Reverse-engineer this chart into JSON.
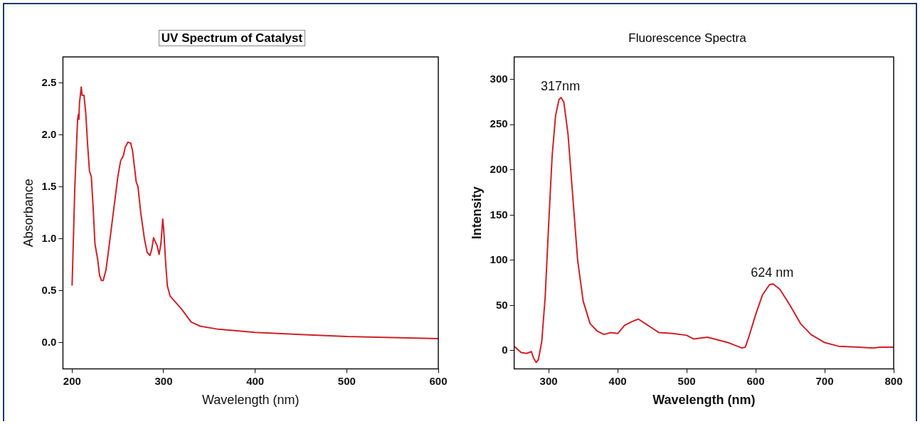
{
  "chart_data": [
    {
      "type": "line",
      "title": "UV Spectrum of Catalyst",
      "xlabel": "Wavelength (nm)",
      "ylabel": "Absorbance",
      "xlim": [
        190,
        600
      ],
      "xticks": [
        200,
        300,
        400,
        500,
        600
      ],
      "ylim": [
        -0.25,
        2.75
      ],
      "yticks": [
        {
          "value": 0,
          "label": "0.0"
        },
        0.5,
        {
          "value": 1,
          "label": "1.0"
        },
        1.5,
        {
          "value": 2,
          "label": "2.0"
        },
        2.5
      ],
      "grid": false,
      "legend": false,
      "marker": "none",
      "line_style": "solid",
      "series": [
        {
          "color": "#cc2229",
          "x": [
            200,
            203,
            206,
            207,
            207.5,
            208,
            210,
            211,
            213,
            215,
            217,
            219,
            221,
            223,
            225,
            228,
            230,
            232,
            234,
            237,
            240,
            245,
            250,
            253,
            256,
            258,
            261,
            264,
            266,
            268,
            270,
            272,
            275,
            279,
            282,
            285,
            287,
            289,
            291,
            293,
            295,
            297,
            299,
            300,
            302,
            304,
            307,
            312,
            320,
            330,
            340,
            360,
            400,
            450,
            500,
            550,
            600
          ],
          "values": [
            0.55,
            1.5,
            2.15,
            2.2,
            2.15,
            2.3,
            2.46,
            2.38,
            2.38,
            2.2,
            1.9,
            1.65,
            1.6,
            1.3,
            0.95,
            0.8,
            0.65,
            0.6,
            0.6,
            0.7,
            0.9,
            1.25,
            1.6,
            1.75,
            1.8,
            1.88,
            1.93,
            1.92,
            1.85,
            1.7,
            1.55,
            1.5,
            1.25,
            1.0,
            0.87,
            0.84,
            0.9,
            1.01,
            0.97,
            0.93,
            0.85,
            0.95,
            1.19,
            1.1,
            0.8,
            0.55,
            0.45,
            0.4,
            0.32,
            0.2,
            0.16,
            0.13,
            0.1,
            0.08,
            0.06,
            0.05,
            0.04
          ]
        }
      ]
    },
    {
      "type": "line",
      "title": "Fluorescence Spectra",
      "xlabel": "Wavelength (nm)",
      "ylabel": "Intensity",
      "xlim": [
        250,
        800
      ],
      "xticks": [
        300,
        400,
        500,
        600,
        700,
        800
      ],
      "ylim": [
        -20,
        325
      ],
      "yticks": [
        0,
        50,
        100,
        150,
        200,
        250,
        300
      ],
      "grid": false,
      "legend": false,
      "marker": "none",
      "line_style": "solid",
      "annotations": [
        {
          "text": "317nm",
          "x": 317,
          "y": 280
        },
        {
          "text": "624 nm",
          "x": 624,
          "y": 74
        }
      ],
      "series": [
        {
          "color": "#cc2229",
          "x": [
            250,
            260,
            268,
            275,
            278,
            282,
            285,
            290,
            295,
            300,
            305,
            310,
            315,
            318,
            322,
            328,
            335,
            342,
            350,
            360,
            370,
            380,
            390,
            400,
            410,
            420,
            430,
            440,
            450,
            460,
            480,
            500,
            510,
            530,
            550,
            560,
            570,
            580,
            585,
            590,
            600,
            610,
            620,
            625,
            635,
            650,
            665,
            680,
            700,
            720,
            750,
            770,
            780,
            800
          ],
          "values": [
            5,
            -2,
            -3,
            -1,
            -8,
            -13,
            -10,
            10,
            60,
            140,
            215,
            260,
            278,
            280,
            275,
            240,
            170,
            100,
            55,
            30,
            22,
            18,
            20,
            19,
            28,
            32,
            35,
            30,
            25,
            20,
            19,
            17,
            13,
            15,
            11,
            9,
            6,
            3,
            4,
            15,
            40,
            62,
            73,
            74,
            68,
            50,
            30,
            18,
            9,
            5,
            4,
            3,
            4,
            4
          ]
        }
      ]
    }
  ]
}
